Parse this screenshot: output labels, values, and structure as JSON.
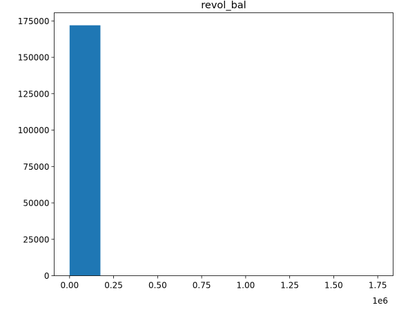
{
  "chart_data": {
    "type": "bar",
    "title": "revol_bal",
    "xlabel": "",
    "ylabel": "",
    "x_multiplier_label": "1e6",
    "xlim": [
      -0.0875,
      1.8375
    ],
    "ylim": [
      0,
      180600
    ],
    "x_ticks": [
      0.0,
      0.25,
      0.5,
      0.75,
      1.0,
      1.25,
      1.5,
      1.75
    ],
    "x_tick_labels": [
      "0.00",
      "0.25",
      "0.50",
      "0.75",
      "1.00",
      "1.25",
      "1.50",
      "1.75"
    ],
    "y_ticks": [
      0,
      25000,
      50000,
      75000,
      100000,
      125000,
      150000,
      175000
    ],
    "y_tick_labels": [
      "0",
      "25000",
      "50000",
      "75000",
      "100000",
      "125000",
      "150000",
      "175000"
    ],
    "bin_edges": [
      0.0,
      0.175,
      0.35,
      0.525,
      0.7,
      0.875,
      1.05,
      1.225,
      1.4,
      1.575,
      1.75
    ],
    "values": [
      172000,
      0,
      0,
      0,
      0,
      0,
      0,
      0,
      0,
      0
    ],
    "bar_color": "#1f77b4",
    "grid": false,
    "legend": "none"
  }
}
